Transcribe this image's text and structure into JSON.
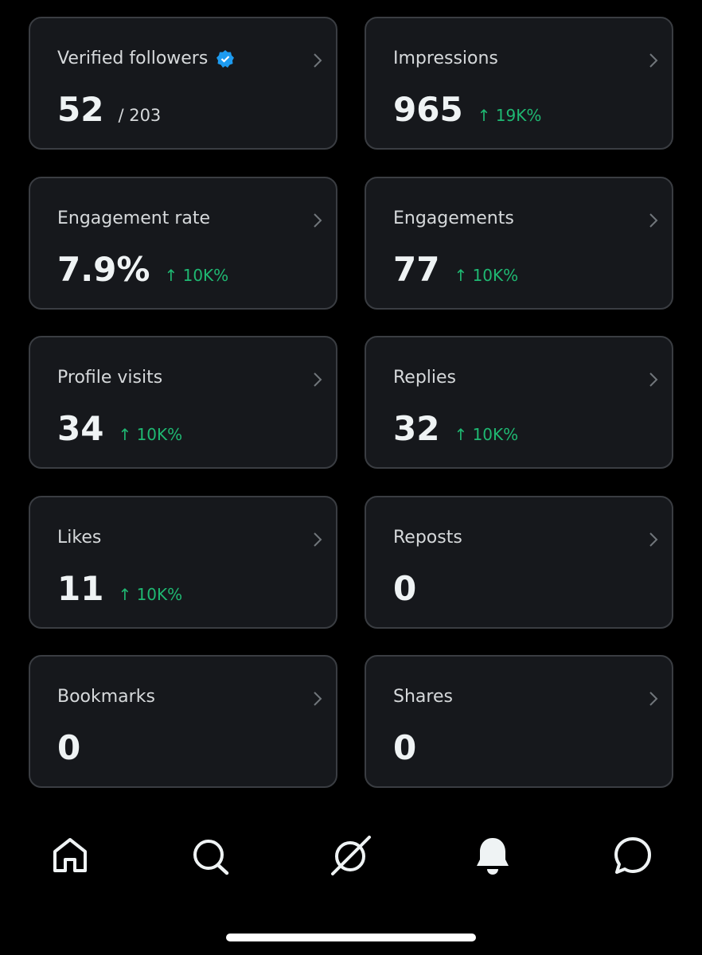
{
  "cards": [
    {
      "label": "Verified followers",
      "value": "52",
      "total": "/ 203"
    },
    {
      "label": "Impressions",
      "value": "965",
      "change": "↑ 19K%"
    },
    {
      "label": "Engagement rate",
      "value": "7.9%",
      "change": "↑ 10K%"
    },
    {
      "label": "Engagements",
      "value": "77",
      "change": "↑ 10K%"
    },
    {
      "label": "Profile visits",
      "value": "34",
      "change": "↑ 10K%"
    },
    {
      "label": "Replies",
      "value": "32",
      "change": "↑ 10K%"
    },
    {
      "label": "Likes",
      "value": "11",
      "change": "↑ 10K%"
    },
    {
      "label": "Reposts",
      "value": "0"
    },
    {
      "label": "Bookmarks",
      "value": "0"
    },
    {
      "label": "Shares",
      "value": "0"
    }
  ]
}
